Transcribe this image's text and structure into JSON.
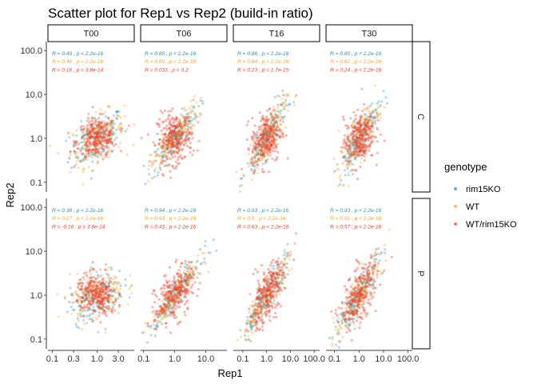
{
  "chart_data": {
    "type": "scatter",
    "title": "Scatter plot for Rep1 vs Rep2 (build-in ratio)",
    "xlabel": "Rep1",
    "ylabel": "Rep2",
    "x_scale": "log10",
    "y_scale": "log10",
    "ylim": [
      0.06,
      160
    ],
    "y_ticks": [
      0.1,
      1.0,
      10.0,
      100.0
    ],
    "y_tick_labels": [
      "0.1",
      "1.0",
      "10.0",
      "100.0"
    ],
    "columns": [
      {
        "id": "T00",
        "xlim": [
          0.08,
          6.8
        ],
        "x_ticks": [
          0.1,
          0.3,
          1.0,
          3.0
        ],
        "x_tick_labels": [
          "0.1",
          "0.3",
          "1.0",
          "3.0"
        ]
      },
      {
        "id": "T06",
        "xlim": [
          0.08,
          48
        ],
        "x_ticks": [
          0.1,
          1.0,
          10.0
        ],
        "x_tick_labels": [
          "0.1",
          "1.0",
          "10.0"
        ]
      },
      {
        "id": "T16",
        "xlim": [
          0.04,
          170
        ],
        "x_ticks": [
          0.1,
          1.0,
          10.0,
          100.0
        ],
        "x_tick_labels": [
          "0.1",
          "1.0",
          "10.0",
          "100.0"
        ]
      },
      {
        "id": "T30",
        "xlim": [
          0.045,
          150
        ],
        "x_ticks": [
          0.1,
          1.0,
          10.0,
          100.0
        ],
        "x_tick_labels": [
          "0.1",
          "1.0",
          "10.0",
          "100.0"
        ]
      }
    ],
    "rows": [
      "C",
      "P"
    ],
    "legend": {
      "title": "genotype",
      "position": "right",
      "items": [
        {
          "label": "rim15KO",
          "color": "#2e8fa3"
        },
        {
          "label": "WT",
          "color": "#f2a52a"
        },
        {
          "label": "WT/rim15KO",
          "color": "#ef3e2a"
        }
      ]
    },
    "panels": [
      {
        "row": "C",
        "col": "T00",
        "stats": [
          {
            "label": "R = 0.49 , p < 2.2e-16",
            "r": 0.49
          },
          {
            "label": "R = 0.46 , p < 2.2e-16",
            "r": 0.46
          },
          {
            "label": "R = 0.16 , p = 3.8e-14",
            "r": 0.16
          }
        ],
        "spread": [
          1.0,
          0.3
        ]
      },
      {
        "row": "C",
        "col": "T06",
        "stats": [
          {
            "label": "R = 0.85 , p < 2.2e-16",
            "r": 0.85
          },
          {
            "label": "R = 0.85 , p < 2.2e-16",
            "r": 0.85
          },
          {
            "label": "R = 0.033 , p = 0.2",
            "r": 0.033
          }
        ],
        "spread": [
          1.0,
          0.38
        ]
      },
      {
        "row": "C",
        "col": "T16",
        "stats": [
          {
            "label": "R = 0.86 , p < 2.2e-16",
            "r": 0.86
          },
          {
            "label": "R = 0.84 , p < 2.2e-16",
            "r": 0.84
          },
          {
            "label": "R = 0.23 , p = 1.7e-15",
            "r": 0.23
          }
        ],
        "spread": [
          1.0,
          0.42
        ]
      },
      {
        "row": "C",
        "col": "T30",
        "stats": [
          {
            "label": "R = 0.85 , p < 2.2e-16",
            "r": 0.85
          },
          {
            "label": "R = 0.82 , p < 2.2e-16",
            "r": 0.82
          },
          {
            "label": "R = 0.24 , p < 2.2e-16",
            "r": 0.24
          }
        ],
        "spread": [
          1.0,
          0.42
        ]
      },
      {
        "row": "P",
        "col": "T00",
        "stats": [
          {
            "label": "R = 0.38 , p < 2.2e-16",
            "r": 0.38
          },
          {
            "label": "R = 0.27 , p < 2.2e-16",
            "r": 0.27
          },
          {
            "label": "R = -0.16 , p = 3.8e-14",
            "r": -0.16
          }
        ],
        "spread": [
          1.0,
          0.3
        ]
      },
      {
        "row": "P",
        "col": "T06",
        "stats": [
          {
            "label": "R = 0.94 , p < 2.2e-16",
            "r": 0.94
          },
          {
            "label": "R = 0.93 , p < 2.2e-16",
            "r": 0.93
          },
          {
            "label": "R = 0.43 , p < 2.2e-16",
            "r": 0.43
          }
        ],
        "spread": [
          1.0,
          0.42
        ]
      },
      {
        "row": "P",
        "col": "T16",
        "stats": [
          {
            "label": "R = 0.93 , p < 2.2e-16",
            "r": 0.93
          },
          {
            "label": "R = 0.9 , p < 2.2e-16",
            "r": 0.9
          },
          {
            "label": "R = 0.63 , p < 2.2e-16",
            "r": 0.63
          }
        ],
        "spread": [
          1.0,
          0.5
        ]
      },
      {
        "row": "P",
        "col": "T30",
        "stats": [
          {
            "label": "R = 0.93 , p < 2.2e-16",
            "r": 0.93
          },
          {
            "label": "R = 0.91 , p < 2.2e-16",
            "r": 0.91
          },
          {
            "label": "R = 0.57 , p < 2.2e-16",
            "r": 0.57
          }
        ],
        "spread": [
          1.0,
          0.5
        ]
      }
    ]
  }
}
